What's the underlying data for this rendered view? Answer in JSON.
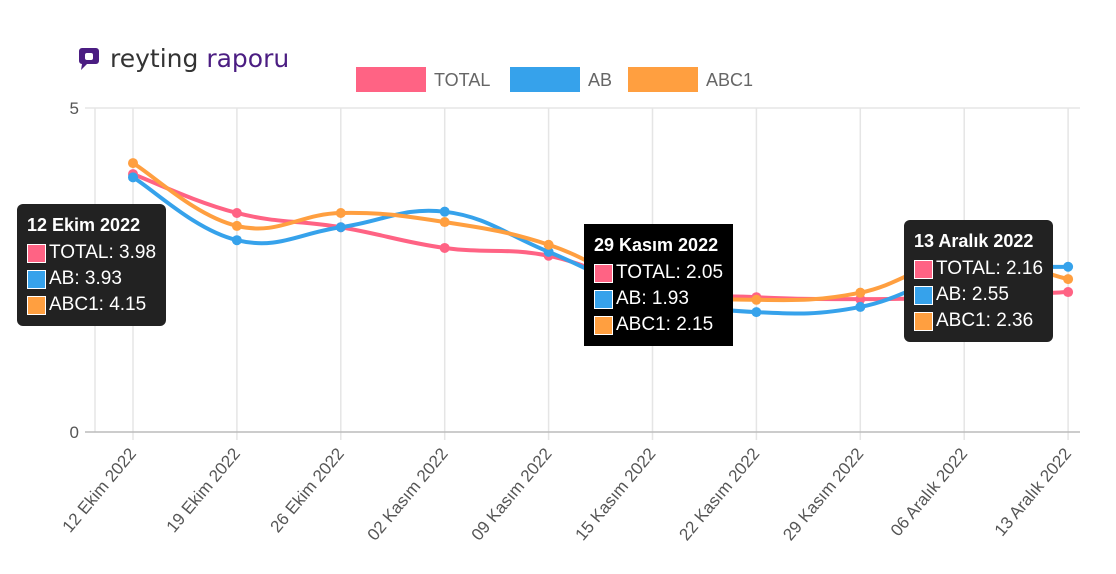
{
  "header": {
    "logo_word1": "reyting",
    "logo_word2": "raporu",
    "brand_color": "#4b1d82"
  },
  "chart_data": {
    "type": "line",
    "categories": [
      "12 Ekim 2022",
      "19 Ekim 2022",
      "26 Ekim 2022",
      "02 Kasım 2022",
      "09 Kasım 2022",
      "15 Kasım 2022",
      "22 Kasım 2022",
      "29 Kasım 2022",
      "06 Aralık 2022",
      "13 Aralık 2022"
    ],
    "ylim": [
      0,
      5
    ],
    "yticks": [
      "0",
      "5"
    ],
    "grid": true,
    "legend": "top",
    "series": [
      {
        "name": "TOTAL",
        "color": "#ff6384",
        "values": [
          3.98,
          3.38,
          3.16,
          2.84,
          2.72,
          2.2,
          2.08,
          2.05,
          2.08,
          2.16
        ]
      },
      {
        "name": "AB",
        "color": "#36a2eb",
        "values": [
          3.93,
          2.96,
          3.16,
          3.4,
          2.78,
          2.1,
          1.85,
          1.93,
          2.47,
          2.55
        ]
      },
      {
        "name": "ABC1",
        "color": "#ff9f40",
        "values": [
          4.15,
          3.18,
          3.38,
          3.24,
          2.89,
          2.2,
          2.04,
          2.15,
          2.68,
          2.36
        ]
      }
    ],
    "tooltips": [
      {
        "title": "12 Ekim 2022",
        "lines": [
          "TOTAL: 3.98",
          "AB: 3.93",
          "ABC1: 4.15"
        ]
      },
      {
        "title": "29 Kasım 2022",
        "lines": [
          "TOTAL: 2.05",
          "AB: 1.93",
          "ABC1: 2.15"
        ]
      },
      {
        "title": "13 Aralık 2022",
        "lines": [
          "TOTAL: 2.16",
          "AB: 2.55",
          "ABC1: 2.36"
        ]
      }
    ]
  }
}
